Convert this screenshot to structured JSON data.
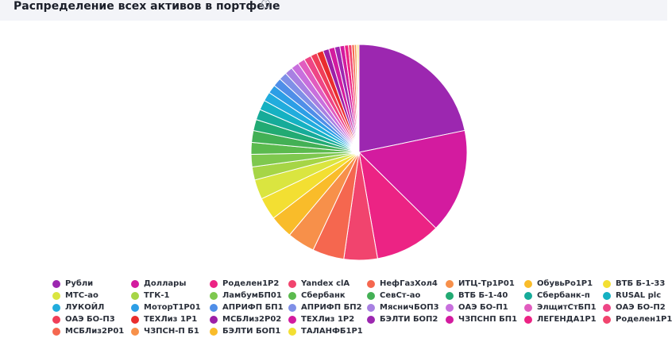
{
  "header": {
    "title": "Распределение всех активов в портфеле",
    "help_icon": "?"
  },
  "colors": [
    "#9c27b0",
    "#d31b9f",
    "#ec2384",
    "#f1446e",
    "#f5674f",
    "#f7904a",
    "#f9bc2a",
    "#f3df32",
    "#dae540",
    "#a6d546",
    "#7ec84e",
    "#5bba4e",
    "#43b055",
    "#22aa73",
    "#16ab99",
    "#15b1c2",
    "#21acdd",
    "#2c9ee6",
    "#4f8ee8",
    "#7f8fe7",
    "#a880e2",
    "#c86fdd",
    "#e15cbf",
    "#ee4586",
    "#f03e58",
    "#e92d2d",
    "#9c1fa7",
    "#d31b9f"
  ],
  "chart_data": {
    "type": "pie",
    "title": "Распределение всех активов в портфеле",
    "unit": "percent (estimated)",
    "slices": [
      {
        "label": "Рубли",
        "value": 22.1
      },
      {
        "label": "Доллары",
        "value": 15.9
      },
      {
        "label": "Роделен1Р2",
        "value": 10.0
      },
      {
        "label": "Yandex clA",
        "value": 5.1
      },
      {
        "label": "НефГазХол4",
        "value": 4.8
      },
      {
        "label": "ИТЦ-Тр1Р01",
        "value": 4.2
      },
      {
        "label": "ОбувьРо1Р1",
        "value": 3.5
      },
      {
        "label": "ВТБ Б-1-33",
        "value": 3.4
      },
      {
        "label": "МТС-ао",
        "value": 3.0
      },
      {
        "label": "ТГК-1",
        "value": 2.0
      },
      {
        "label": "ЛамбумБП01",
        "value": 1.9
      },
      {
        "label": "Сбербанк",
        "value": 1.8
      },
      {
        "label": "СевСт-ао",
        "value": 1.8
      },
      {
        "label": "ВТБ Б-1-40",
        "value": 1.7
      },
      {
        "label": "Сбербанк-п",
        "value": 1.6
      },
      {
        "label": "RUSAL plc",
        "value": 1.5
      },
      {
        "label": "ЛУКОЙЛ",
        "value": 1.4
      },
      {
        "label": "МоторТ1Р01",
        "value": 1.3
      },
      {
        "label": "АПРИФП БП1",
        "value": 1.3
      },
      {
        "label": "АПРИФП БП2",
        "value": 1.2
      },
      {
        "label": "МясничБОП3",
        "value": 1.2
      },
      {
        "label": "ОАЭ БО-П1",
        "value": 1.2
      },
      {
        "label": "ЭлщитСтБП1",
        "value": 1.1
      },
      {
        "label": "ОАЭ БО-П2",
        "value": 1.1
      },
      {
        "label": "ОАЭ БО-П3",
        "value": 1.0
      },
      {
        "label": "ТЕХЛиз 1Р1",
        "value": 1.0
      },
      {
        "label": "МСБЛиз2Р02",
        "value": 0.9
      },
      {
        "label": "ТЕХЛиз 1Р2",
        "value": 0.9
      },
      {
        "label": "БЭЛТИ БОП2",
        "value": 0.8
      },
      {
        "label": "ЧЗПСНП БП1",
        "value": 0.7
      },
      {
        "label": "ЛЕГЕНДА1Р1",
        "value": 0.6
      },
      {
        "label": "Роделен1Р1",
        "value": 0.5
      },
      {
        "label": "МСБЛиз2Р01",
        "value": 0.4
      },
      {
        "label": "ЧЗПСН-П Б1",
        "value": 0.3
      },
      {
        "label": "БЭЛТИ БОП1",
        "value": 0.2
      },
      {
        "label": "ТАЛАНФБ1Р1",
        "value": 0.2
      }
    ],
    "legend_placement": "bottom"
  }
}
